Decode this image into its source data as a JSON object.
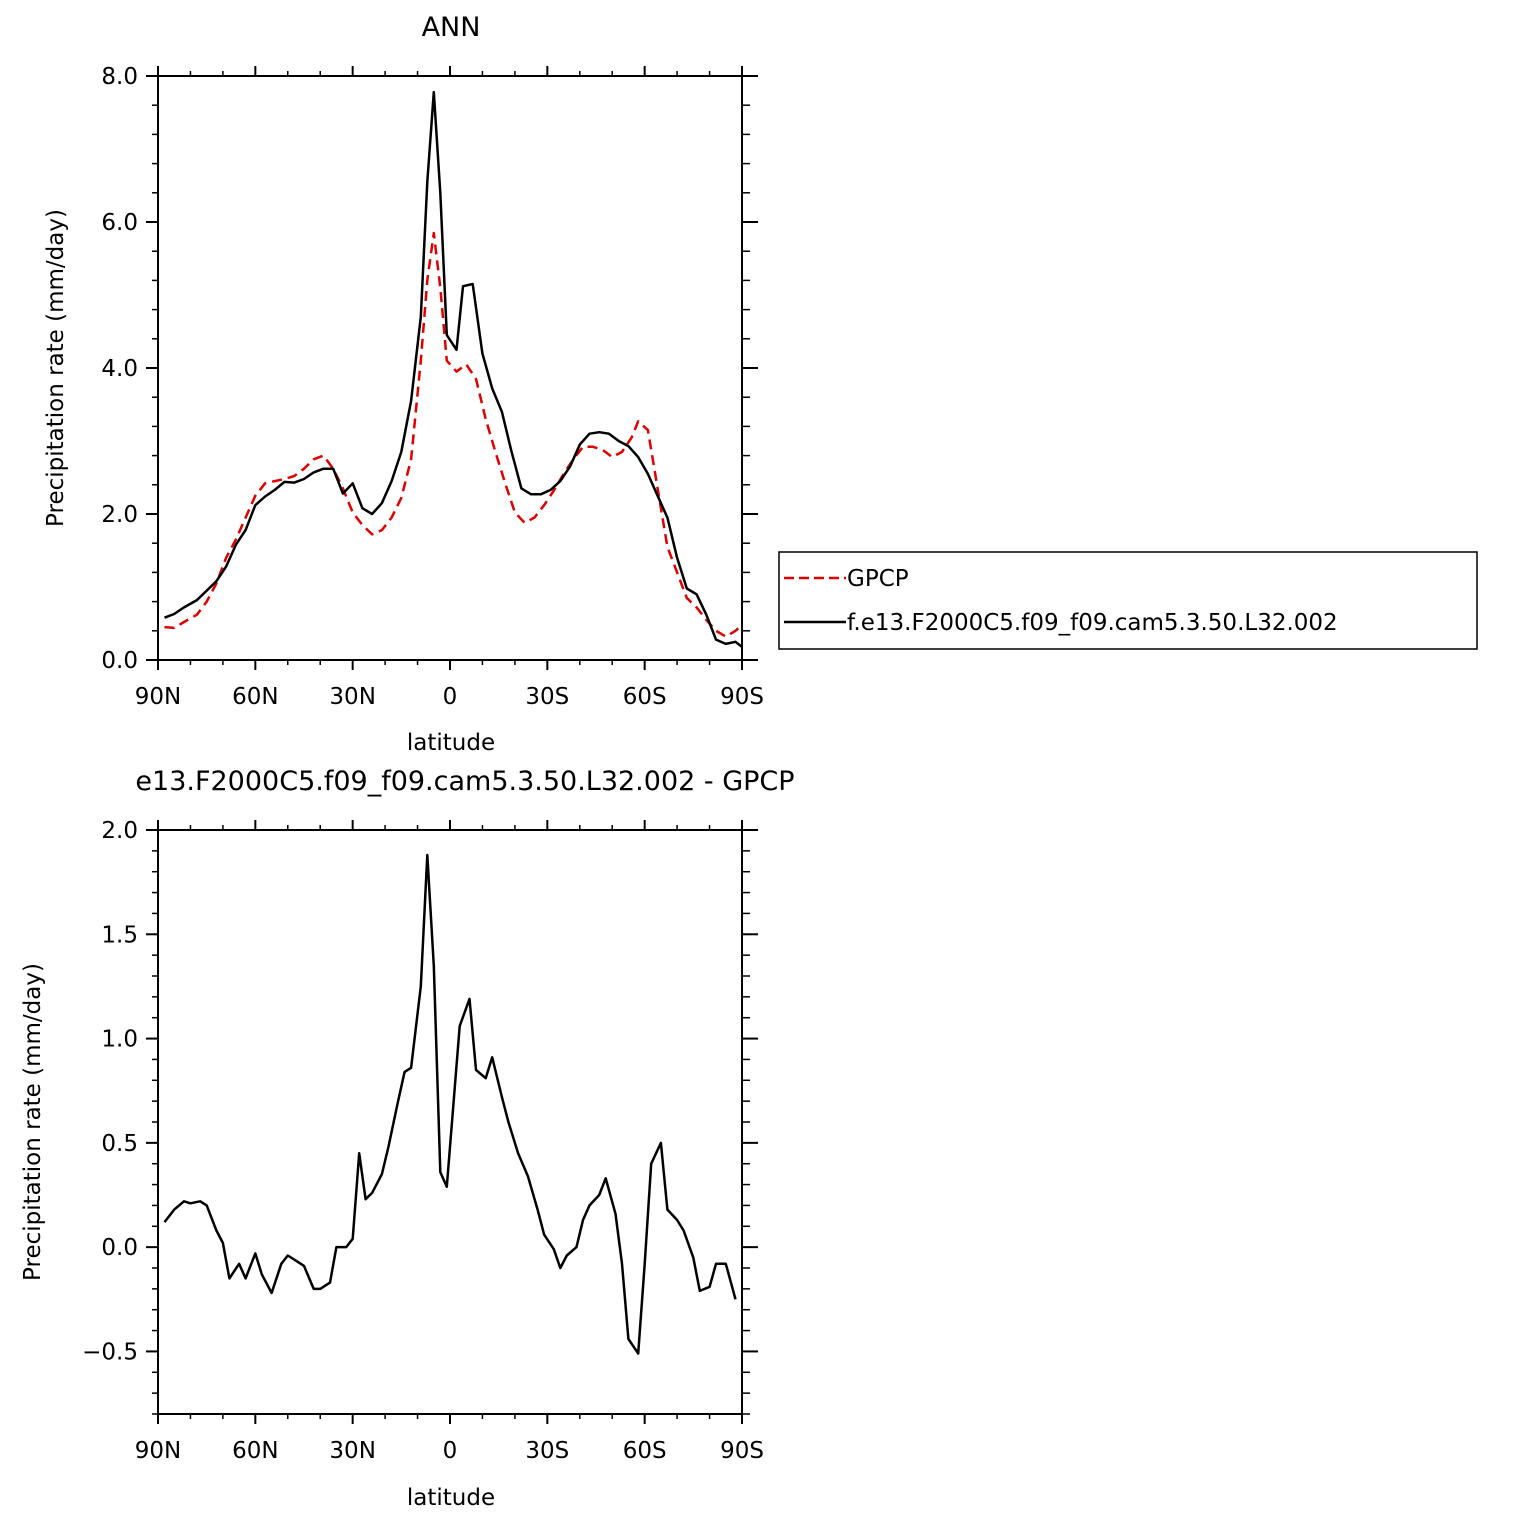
{
  "chart_data": [
    {
      "type": "line",
      "title": "ANN",
      "xlabel": "latitude",
      "ylabel": "Precipitation rate (mm/day)",
      "xlim": [
        90,
        -90
      ],
      "ylim": [
        0,
        8
      ],
      "x_ticks": [
        {
          "value": 90,
          "label": "90N"
        },
        {
          "value": 60,
          "label": "60N"
        },
        {
          "value": 30,
          "label": "30N"
        },
        {
          "value": 0,
          "label": "0"
        },
        {
          "value": -30,
          "label": "30S"
        },
        {
          "value": -60,
          "label": "60S"
        },
        {
          "value": -90,
          "label": "90S"
        }
      ],
      "y_ticks": [
        {
          "value": 0,
          "label": "0.0"
        },
        {
          "value": 2,
          "label": "2.0"
        },
        {
          "value": 4,
          "label": "4.0"
        },
        {
          "value": 6,
          "label": "6.0"
        },
        {
          "value": 8,
          "label": "8.0"
        }
      ],
      "grid": false,
      "legend": {
        "placement": "right, outside plot"
      },
      "series": [
        {
          "name": "GPCP",
          "color": "#e00000",
          "style": "dashed",
          "points": [
            [
              88,
              0.45
            ],
            [
              85,
              0.44
            ],
            [
              82,
              0.52
            ],
            [
              78,
              0.62
            ],
            [
              75,
              0.8
            ],
            [
              72,
              1.05
            ],
            [
              69,
              1.4
            ],
            [
              66,
              1.65
            ],
            [
              63,
              1.95
            ],
            [
              60,
              2.25
            ],
            [
              57,
              2.42
            ],
            [
              54,
              2.45
            ],
            [
              51,
              2.48
            ],
            [
              48,
              2.52
            ],
            [
              45,
              2.62
            ],
            [
              42,
              2.75
            ],
            [
              39,
              2.8
            ],
            [
              36,
              2.62
            ],
            [
              33,
              2.35
            ],
            [
              30,
              2.02
            ],
            [
              27,
              1.85
            ],
            [
              24,
              1.72
            ],
            [
              21,
              1.78
            ],
            [
              18,
              1.95
            ],
            [
              15,
              2.22
            ],
            [
              12,
              2.75
            ],
            [
              9,
              4.1
            ],
            [
              7,
              5.2
            ],
            [
              5,
              5.85
            ],
            [
              3,
              5.1
            ],
            [
              1,
              4.1
            ],
            [
              -2,
              3.95
            ],
            [
              -5,
              4.05
            ],
            [
              -8,
              3.85
            ],
            [
              -11,
              3.3
            ],
            [
              -14,
              2.85
            ],
            [
              -17,
              2.42
            ],
            [
              -20,
              2.02
            ],
            [
              -23,
              1.88
            ],
            [
              -26,
              1.95
            ],
            [
              -29,
              2.12
            ],
            [
              -32,
              2.32
            ],
            [
              -35,
              2.55
            ],
            [
              -38,
              2.75
            ],
            [
              -41,
              2.92
            ],
            [
              -44,
              2.92
            ],
            [
              -47,
              2.88
            ],
            [
              -50,
              2.78
            ],
            [
              -53,
              2.85
            ],
            [
              -56,
              3.05
            ],
            [
              -58,
              3.27
            ],
            [
              -61,
              3.15
            ],
            [
              -64,
              2.35
            ],
            [
              -67,
              1.55
            ],
            [
              -70,
              1.2
            ],
            [
              -73,
              0.85
            ],
            [
              -76,
              0.72
            ],
            [
              -79,
              0.55
            ],
            [
              -82,
              0.4
            ],
            [
              -85,
              0.32
            ],
            [
              -88,
              0.4
            ],
            [
              -90,
              0.48
            ]
          ]
        },
        {
          "name": "f.e13.F2000C5.f09_f09.cam5.3.50.L32.002",
          "color": "#000000",
          "style": "solid",
          "points": [
            [
              88,
              0.58
            ],
            [
              85,
              0.63
            ],
            [
              82,
              0.72
            ],
            [
              78,
              0.82
            ],
            [
              75,
              0.95
            ],
            [
              72,
              1.08
            ],
            [
              69,
              1.28
            ],
            [
              66,
              1.58
            ],
            [
              63,
              1.78
            ],
            [
              60,
              2.12
            ],
            [
              57,
              2.24
            ],
            [
              54,
              2.33
            ],
            [
              51,
              2.44
            ],
            [
              48,
              2.43
            ],
            [
              45,
              2.48
            ],
            [
              42,
              2.57
            ],
            [
              39,
              2.62
            ],
            [
              36,
              2.62
            ],
            [
              33,
              2.28
            ],
            [
              30,
              2.42
            ],
            [
              27,
              2.08
            ],
            [
              24,
              2.0
            ],
            [
              21,
              2.15
            ],
            [
              18,
              2.45
            ],
            [
              15,
              2.85
            ],
            [
              12,
              3.55
            ],
            [
              9,
              4.7
            ],
            [
              7,
              6.55
            ],
            [
              5,
              7.78
            ],
            [
              3,
              6.4
            ],
            [
              1,
              4.45
            ],
            [
              -2,
              4.25
            ],
            [
              -4,
              5.12
            ],
            [
              -7,
              5.15
            ],
            [
              -10,
              4.2
            ],
            [
              -13,
              3.72
            ],
            [
              -16,
              3.4
            ],
            [
              -19,
              2.85
            ],
            [
              -22,
              2.35
            ],
            [
              -25,
              2.27
            ],
            [
              -28,
              2.27
            ],
            [
              -31,
              2.33
            ],
            [
              -34,
              2.45
            ],
            [
              -37,
              2.65
            ],
            [
              -40,
              2.95
            ],
            [
              -43,
              3.1
            ],
            [
              -46,
              3.12
            ],
            [
              -49,
              3.1
            ],
            [
              -52,
              3.0
            ],
            [
              -55,
              2.93
            ],
            [
              -58,
              2.78
            ],
            [
              -61,
              2.55
            ],
            [
              -64,
              2.25
            ],
            [
              -67,
              1.95
            ],
            [
              -70,
              1.4
            ],
            [
              -73,
              0.98
            ],
            [
              -76,
              0.9
            ],
            [
              -79,
              0.62
            ],
            [
              -82,
              0.28
            ],
            [
              -85,
              0.22
            ],
            [
              -88,
              0.25
            ],
            [
              -90,
              0.18
            ]
          ]
        }
      ]
    },
    {
      "type": "line",
      "title": "e13.F2000C5.f09_f09.cam5.3.50.L32.002 - GPCP",
      "xlabel": "latitude",
      "ylabel": "Precipitation rate (mm/day)",
      "xlim": [
        90,
        -90
      ],
      "ylim": [
        -0.8,
        2.0
      ],
      "x_ticks": [
        {
          "value": 90,
          "label": "90N"
        },
        {
          "value": 60,
          "label": "60N"
        },
        {
          "value": 30,
          "label": "30N"
        },
        {
          "value": 0,
          "label": "0"
        },
        {
          "value": -30,
          "label": "30S"
        },
        {
          "value": -60,
          "label": "60S"
        },
        {
          "value": -90,
          "label": "90S"
        }
      ],
      "y_ticks": [
        {
          "value": -0.5,
          "label": "−0.5"
        },
        {
          "value": 0,
          "label": "0.0"
        },
        {
          "value": 0.5,
          "label": "0.5"
        },
        {
          "value": 1.0,
          "label": "1.0"
        },
        {
          "value": 1.5,
          "label": "1.5"
        },
        {
          "value": 2.0,
          "label": "2.0"
        }
      ],
      "grid": false,
      "series": [
        {
          "color": "#000000",
          "style": "solid",
          "points": [
            [
              88,
              0.12
            ],
            [
              85,
              0.18
            ],
            [
              82,
              0.22
            ],
            [
              80,
              0.21
            ],
            [
              77,
              0.22
            ],
            [
              75,
              0.2
            ],
            [
              72,
              0.08
            ],
            [
              70,
              0.02
            ],
            [
              68,
              -0.15
            ],
            [
              65,
              -0.08
            ],
            [
              63,
              -0.15
            ],
            [
              60,
              -0.03
            ],
            [
              58,
              -0.13
            ],
            [
              55,
              -0.22
            ],
            [
              52,
              -0.08
            ],
            [
              50,
              -0.04
            ],
            [
              47,
              -0.07
            ],
            [
              45,
              -0.09
            ],
            [
              42,
              -0.2
            ],
            [
              40,
              -0.2
            ],
            [
              37,
              -0.17
            ],
            [
              35,
              0.0
            ],
            [
              32,
              0.0
            ],
            [
              30,
              0.04
            ],
            [
              28,
              0.45
            ],
            [
              26,
              0.23
            ],
            [
              24,
              0.26
            ],
            [
              21,
              0.35
            ],
            [
              19,
              0.48
            ],
            [
              16,
              0.7
            ],
            [
              14,
              0.84
            ],
            [
              12,
              0.86
            ],
            [
              9,
              1.25
            ],
            [
              7,
              1.88
            ],
            [
              5,
              1.35
            ],
            [
              3,
              0.36
            ],
            [
              1,
              0.29
            ],
            [
              -3,
              1.06
            ],
            [
              -6,
              1.19
            ],
            [
              -8,
              0.85
            ],
            [
              -11,
              0.81
            ],
            [
              -13,
              0.91
            ],
            [
              -16,
              0.72
            ],
            [
              -18,
              0.6
            ],
            [
              -21,
              0.45
            ],
            [
              -24,
              0.34
            ],
            [
              -27,
              0.18
            ],
            [
              -29,
              0.06
            ],
            [
              -32,
              -0.01
            ],
            [
              -34,
              -0.1
            ],
            [
              -36,
              -0.04
            ],
            [
              -39,
              0.0
            ],
            [
              -41,
              0.13
            ],
            [
              -43,
              0.2
            ],
            [
              -46,
              0.25
            ],
            [
              -48,
              0.33
            ],
            [
              -51,
              0.16
            ],
            [
              -53,
              -0.08
            ],
            [
              -55,
              -0.44
            ],
            [
              -58,
              -0.51
            ],
            [
              -60,
              -0.08
            ],
            [
              -62,
              0.4
            ],
            [
              -65,
              0.5
            ],
            [
              -67,
              0.18
            ],
            [
              -70,
              0.13
            ],
            [
              -72,
              0.08
            ],
            [
              -75,
              -0.05
            ],
            [
              -77,
              -0.21
            ],
            [
              -80,
              -0.19
            ],
            [
              -82,
              -0.08
            ],
            [
              -85,
              -0.08
            ],
            [
              -88,
              -0.25
            ]
          ]
        }
      ]
    }
  ]
}
